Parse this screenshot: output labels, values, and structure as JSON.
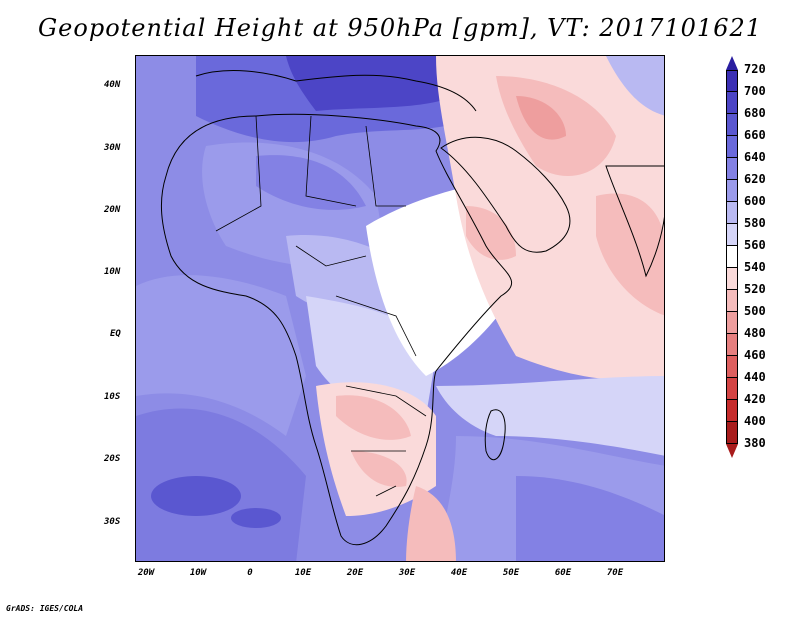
{
  "title": "Geopotential Height at 950hPa [gpm], VT: 2017101621",
  "footer": "GrADS: IGES/COLA",
  "map": {
    "lat_labels": [
      "40N",
      "30N",
      "20N",
      "10N",
      "EQ",
      "10S",
      "20S",
      "30S"
    ],
    "lon_labels": [
      "20W",
      "10W",
      "0",
      "10E",
      "20E",
      "30E",
      "40E",
      "50E",
      "60E",
      "70E"
    ]
  },
  "colorbar": {
    "labels": [
      "720",
      "700",
      "680",
      "660",
      "640",
      "620",
      "600",
      "580",
      "560",
      "540",
      "520",
      "500",
      "480",
      "460",
      "440",
      "420",
      "400",
      "380"
    ],
    "colors": [
      "#2a1ea0",
      "#3b2fb4",
      "#4c45c6",
      "#5a57d0",
      "#6a69db",
      "#8381e4",
      "#9b9beb",
      "#b9b9f2",
      "#d5d5f8",
      "#ffffff",
      "#fadada",
      "#f5bcbc",
      "#ee9e9e",
      "#e67f7f",
      "#de5f5f",
      "#d44444",
      "#c62c2c",
      "#a81c1c"
    ]
  }
}
